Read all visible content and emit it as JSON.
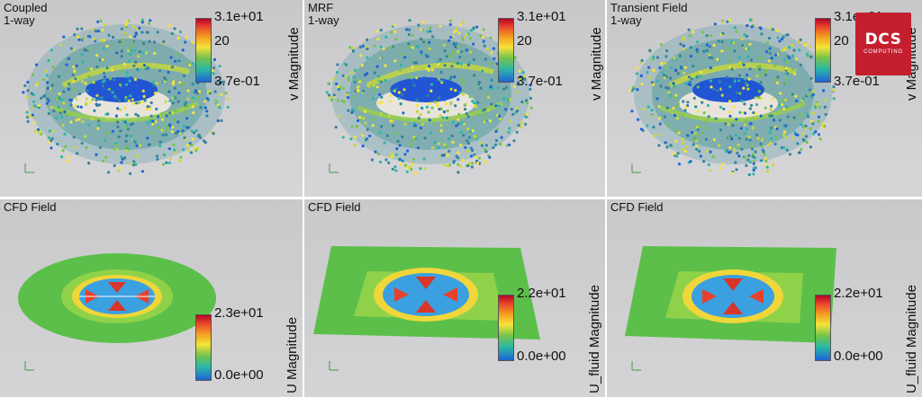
{
  "panels": {
    "top_left": {
      "title1": "Coupled",
      "title2": "1-way",
      "tick_max": "3.1e+01",
      "tick_mid": "20",
      "tick_min": "3.7e-01",
      "cbar_label": "v Magnitude"
    },
    "top_mid": {
      "title1": "MRF",
      "title2": "1-way",
      "tick_max": "3.1e+01",
      "tick_mid": "20",
      "tick_min": "3.7e-01",
      "cbar_label": "v Magnitude"
    },
    "top_right": {
      "title1": "Transient Field",
      "title2": "1-way",
      "tick_max": "3.1e+01",
      "tick_mid": "20",
      "tick_min": "3.7e-01",
      "cbar_label": "v Magnitude"
    },
    "bot_left": {
      "title1": "CFD Field",
      "tick_max": "2.3e+01",
      "tick_min": "0.0e+00",
      "cbar_label": "U Magnitude"
    },
    "bot_mid": {
      "title1": "CFD Field",
      "tick_max": "2.2e+01",
      "tick_min": "0.0e+00",
      "cbar_label": "U_fluid Magnitude"
    },
    "bot_right": {
      "title1": "CFD Field",
      "tick_max": "2.2e+01",
      "tick_min": "0.0e+00",
      "cbar_label": "U_fluid Magnitude"
    }
  },
  "logo": {
    "main": "DCS",
    "sub": "COMPUTING"
  },
  "colors": {
    "max": "#b40426",
    "mid": "#f5e33a",
    "min": "#1f64d6",
    "field_bg": "#5cbf4a"
  }
}
